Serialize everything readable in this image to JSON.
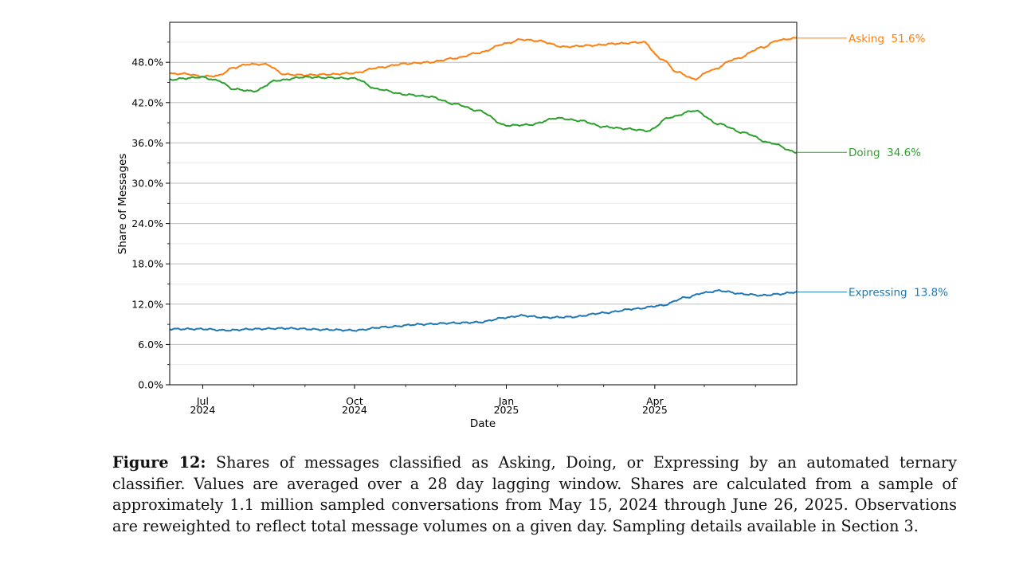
{
  "chart_data": {
    "type": "line",
    "xlabel": "Date",
    "ylabel": "Share of Messages",
    "ylim": [
      0,
      54
    ],
    "y_ticks": [
      "0.0%",
      "6.0%",
      "12.0%",
      "18.0%",
      "24.0%",
      "30.0%",
      "36.0%",
      "42.0%",
      "48.0%"
    ],
    "y_tick_values": [
      0,
      6,
      12,
      18,
      24,
      30,
      36,
      42,
      48
    ],
    "x_range": [
      "2024-06-11",
      "2025-06-26"
    ],
    "x_ticks": [
      {
        "date": "2024-07-01",
        "line1": "Jul",
        "line2": "2024"
      },
      {
        "date": "2024-10-01",
        "line1": "Oct",
        "line2": "2024"
      },
      {
        "date": "2025-01-01",
        "line1": "Jan",
        "line2": "2025"
      },
      {
        "date": "2025-04-01",
        "line1": "Apr",
        "line2": "2025"
      }
    ],
    "grid": true,
    "series": [
      {
        "name": "Asking",
        "color": "#ff7f0e",
        "end_label": "Asking  51.6%",
        "points": [
          [
            "2024-06-11",
            46.3
          ],
          [
            "2024-06-20",
            46.3
          ],
          [
            "2024-07-01",
            45.9
          ],
          [
            "2024-07-10",
            46.0
          ],
          [
            "2024-07-20",
            47.2
          ],
          [
            "2024-07-28",
            47.7
          ],
          [
            "2024-08-08",
            47.7
          ],
          [
            "2024-08-20",
            46.2
          ],
          [
            "2024-09-01",
            46.1
          ],
          [
            "2024-09-15",
            46.2
          ],
          [
            "2024-10-01",
            46.4
          ],
          [
            "2024-10-15",
            47.2
          ],
          [
            "2024-11-01",
            47.8
          ],
          [
            "2024-11-15",
            48.0
          ],
          [
            "2024-12-01",
            48.6
          ],
          [
            "2024-12-15",
            49.4
          ],
          [
            "2025-01-01",
            50.8
          ],
          [
            "2025-01-10",
            51.4
          ],
          [
            "2025-01-20",
            51.2
          ],
          [
            "2025-02-05",
            50.3
          ],
          [
            "2025-02-20",
            50.5
          ],
          [
            "2025-03-10",
            50.8
          ],
          [
            "2025-03-25",
            51.0
          ],
          [
            "2025-04-05",
            48.5
          ],
          [
            "2025-04-15",
            46.5
          ],
          [
            "2025-04-25",
            45.5
          ],
          [
            "2025-05-05",
            46.8
          ],
          [
            "2025-05-20",
            48.5
          ],
          [
            "2025-06-05",
            50.2
          ],
          [
            "2025-06-15",
            51.3
          ],
          [
            "2025-06-26",
            51.6
          ]
        ]
      },
      {
        "name": "Doing",
        "color": "#2ca02c",
        "end_label": "Doing  34.6%",
        "points": [
          [
            "2024-06-11",
            45.4
          ],
          [
            "2024-06-20",
            45.6
          ],
          [
            "2024-06-30",
            45.8
          ],
          [
            "2024-07-10",
            45.3
          ],
          [
            "2024-07-20",
            44.0
          ],
          [
            "2024-08-01",
            43.7
          ],
          [
            "2024-08-15",
            45.3
          ],
          [
            "2024-09-01",
            45.8
          ],
          [
            "2024-09-15",
            45.7
          ],
          [
            "2024-10-01",
            45.6
          ],
          [
            "2024-10-15",
            44.0
          ],
          [
            "2024-11-01",
            43.2
          ],
          [
            "2024-11-15",
            42.9
          ],
          [
            "2024-12-01",
            41.8
          ],
          [
            "2024-12-15",
            40.8
          ],
          [
            "2025-01-01",
            38.6
          ],
          [
            "2025-01-15",
            38.7
          ],
          [
            "2025-02-01",
            39.7
          ],
          [
            "2025-02-15",
            39.3
          ],
          [
            "2025-03-01",
            38.4
          ],
          [
            "2025-03-15",
            38.1
          ],
          [
            "2025-03-28",
            37.8
          ],
          [
            "2025-04-10",
            39.8
          ],
          [
            "2025-04-25",
            40.8
          ],
          [
            "2025-05-10",
            38.8
          ],
          [
            "2025-05-25",
            37.5
          ],
          [
            "2025-06-10",
            36.0
          ],
          [
            "2025-06-26",
            34.6
          ]
        ]
      },
      {
        "name": "Expressing",
        "color": "#1f77b4",
        "end_label": "Expressing  13.8%",
        "points": [
          [
            "2024-06-11",
            8.3
          ],
          [
            "2024-07-01",
            8.3
          ],
          [
            "2024-07-15",
            8.1
          ],
          [
            "2024-08-01",
            8.3
          ],
          [
            "2024-08-20",
            8.4
          ],
          [
            "2024-09-15",
            8.2
          ],
          [
            "2024-10-01",
            8.1
          ],
          [
            "2024-10-20",
            8.6
          ],
          [
            "2024-11-10",
            9.0
          ],
          [
            "2024-12-01",
            9.2
          ],
          [
            "2024-12-15",
            9.3
          ],
          [
            "2025-01-01",
            10.0
          ],
          [
            "2025-01-10",
            10.3
          ],
          [
            "2025-01-25",
            10.0
          ],
          [
            "2025-02-10",
            10.1
          ],
          [
            "2025-03-01",
            10.7
          ],
          [
            "2025-03-20",
            11.3
          ],
          [
            "2025-04-05",
            11.8
          ],
          [
            "2025-04-20",
            13.0
          ],
          [
            "2025-05-01",
            13.7
          ],
          [
            "2025-05-10",
            14.0
          ],
          [
            "2025-05-25",
            13.5
          ],
          [
            "2025-06-05",
            13.3
          ],
          [
            "2025-06-15",
            13.5
          ],
          [
            "2025-06-26",
            13.8
          ]
        ]
      }
    ]
  },
  "caption": {
    "label": "Figure 12:",
    "text": " Shares of messages classified as Asking, Doing, or Expressing by an automated ternary classifier. Values are averaged over a 28 day lagging window.  Shares are calculated from a sample of approximately 1.1 million sampled conversations from May 15, 2024 through June 26, 2025. Observations are reweighted to reflect total message volumes on a given day. Sampling details available in Section 3."
  }
}
